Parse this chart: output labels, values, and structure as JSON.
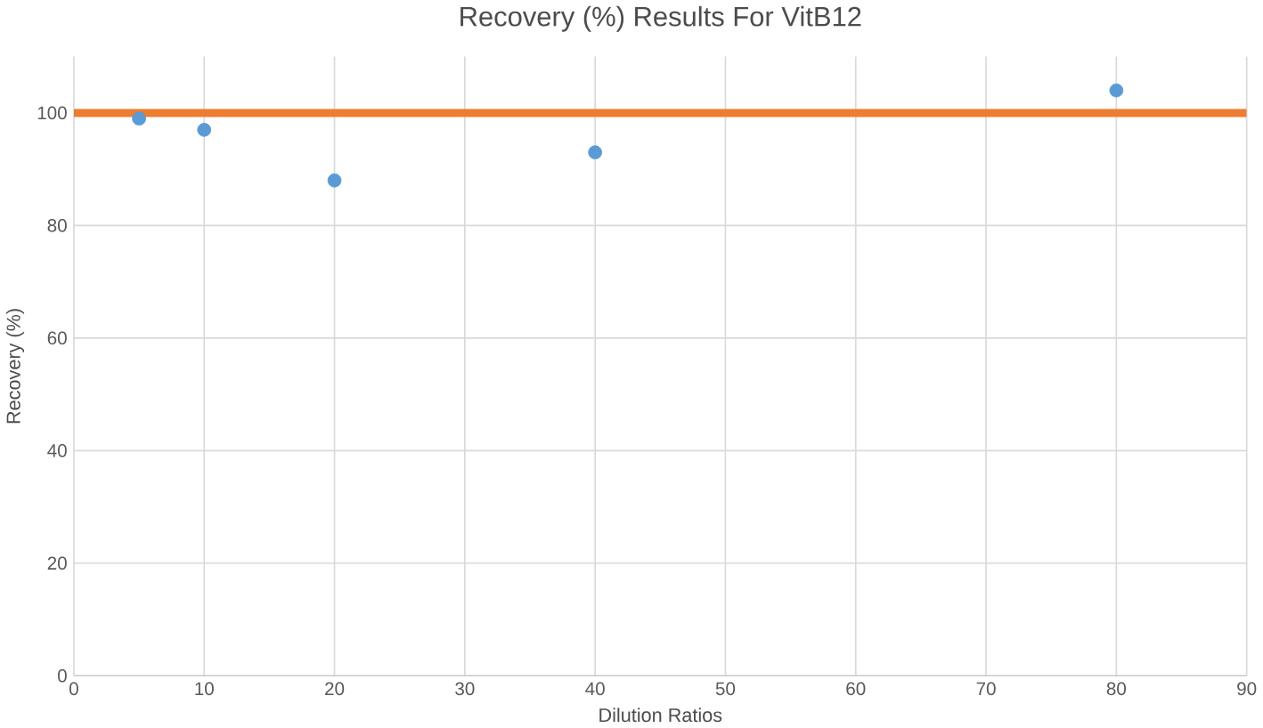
{
  "chart_data": {
    "type": "scatter",
    "title": "Recovery (%) Results For VitB12",
    "xlabel": "Dilution Ratios",
    "ylabel": "Recovery (%)",
    "x": [
      5,
      10,
      20,
      40,
      80
    ],
    "series": [
      {
        "color": "#5b9bd5",
        "values": [
          99,
          97,
          88,
          93,
          104
        ]
      }
    ],
    "xlim": [
      0,
      90
    ],
    "xticks": [
      0,
      10,
      20,
      30,
      40,
      50,
      60,
      70,
      80,
      90
    ],
    "ylim": [
      0,
      110
    ],
    "yticks": [
      0,
      20,
      40,
      60,
      80,
      100
    ],
    "ref_lines": [
      {
        "axis": "y",
        "value": 100,
        "color": "#ed7d31"
      }
    ],
    "grid": true,
    "legend": false
  }
}
